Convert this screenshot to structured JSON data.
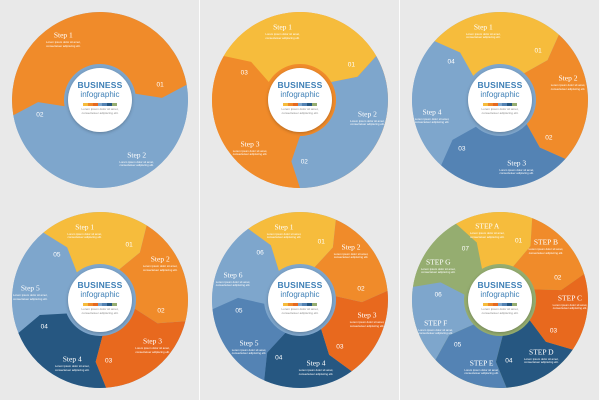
{
  "colors": {
    "yellow": "#f6bc3c",
    "orange": "#f08b2a",
    "dark_orange": "#e8691e",
    "light_blue": "#7ea6cc",
    "mid_blue": "#5483b4",
    "dark_blue": "#265781",
    "green": "#95ad70",
    "background": "#e9e9e9"
  },
  "hub": {
    "title": "BUSINESS",
    "subtitle": "infographic",
    "body": "Lorem ipsum dolor sit amet, consectetuer adipiscing elit.",
    "bar_colors": [
      "#f6bc3c",
      "#f08b2a",
      "#e8691e",
      "#7ea6cc",
      "#5483b4",
      "#265781",
      "#95ad70"
    ]
  },
  "segment_body": "Lorem ipsum dolor sit amet, consectetuer adipiscing elit.",
  "diagrams": [
    {
      "name": "two-step",
      "segments": [
        {
          "label": "Step 1",
          "number": "01",
          "color": "#f08b2a"
        },
        {
          "label": "Step 2",
          "number": "02",
          "color": "#7ea6cc"
        }
      ]
    },
    {
      "name": "three-step",
      "segments": [
        {
          "label": "Step 1",
          "number": "01",
          "color": "#f6bc3c"
        },
        {
          "label": "Step 2",
          "number": "02",
          "color": "#7ea6cc"
        },
        {
          "label": "Step 3",
          "number": "03",
          "color": "#f08b2a"
        }
      ]
    },
    {
      "name": "four-step",
      "segments": [
        {
          "label": "Step 1",
          "number": "01",
          "color": "#f6bc3c"
        },
        {
          "label": "Step 2",
          "number": "02",
          "color": "#f08b2a"
        },
        {
          "label": "Step 3",
          "number": "03",
          "color": "#5483b4"
        },
        {
          "label": "Step 4",
          "number": "04",
          "color": "#7ea6cc"
        }
      ]
    },
    {
      "name": "five-step",
      "segments": [
        {
          "label": "Step 1",
          "number": "01",
          "color": "#f6bc3c"
        },
        {
          "label": "Step 2",
          "number": "02",
          "color": "#f08b2a"
        },
        {
          "label": "Step 3",
          "number": "03",
          "color": "#e8691e"
        },
        {
          "label": "Step 4",
          "number": "04",
          "color": "#265781"
        },
        {
          "label": "Step 5",
          "number": "05",
          "color": "#7ea6cc"
        }
      ]
    },
    {
      "name": "six-step",
      "segments": [
        {
          "label": "Step 1",
          "number": "01",
          "color": "#f6bc3c"
        },
        {
          "label": "Step 2",
          "number": "02",
          "color": "#f08b2a"
        },
        {
          "label": "Step 3",
          "number": "03",
          "color": "#e8691e"
        },
        {
          "label": "Step 4",
          "number": "04",
          "color": "#265781"
        },
        {
          "label": "Step 5",
          "number": "05",
          "color": "#5483b4"
        },
        {
          "label": "Step 6",
          "number": "06",
          "color": "#7ea6cc"
        }
      ]
    },
    {
      "name": "seven-step",
      "segments": [
        {
          "label": "STEP A",
          "number": "01",
          "color": "#f6bc3c"
        },
        {
          "label": "STEP B",
          "number": "02",
          "color": "#f08b2a"
        },
        {
          "label": "STEP C",
          "number": "03",
          "color": "#e8691e"
        },
        {
          "label": "STEP D",
          "number": "04",
          "color": "#265781"
        },
        {
          "label": "STEP E",
          "number": "05",
          "color": "#5483b4"
        },
        {
          "label": "STEP F",
          "number": "06",
          "color": "#7ea6cc"
        },
        {
          "label": "STEP G",
          "number": "07",
          "color": "#95ad70"
        }
      ]
    }
  ]
}
